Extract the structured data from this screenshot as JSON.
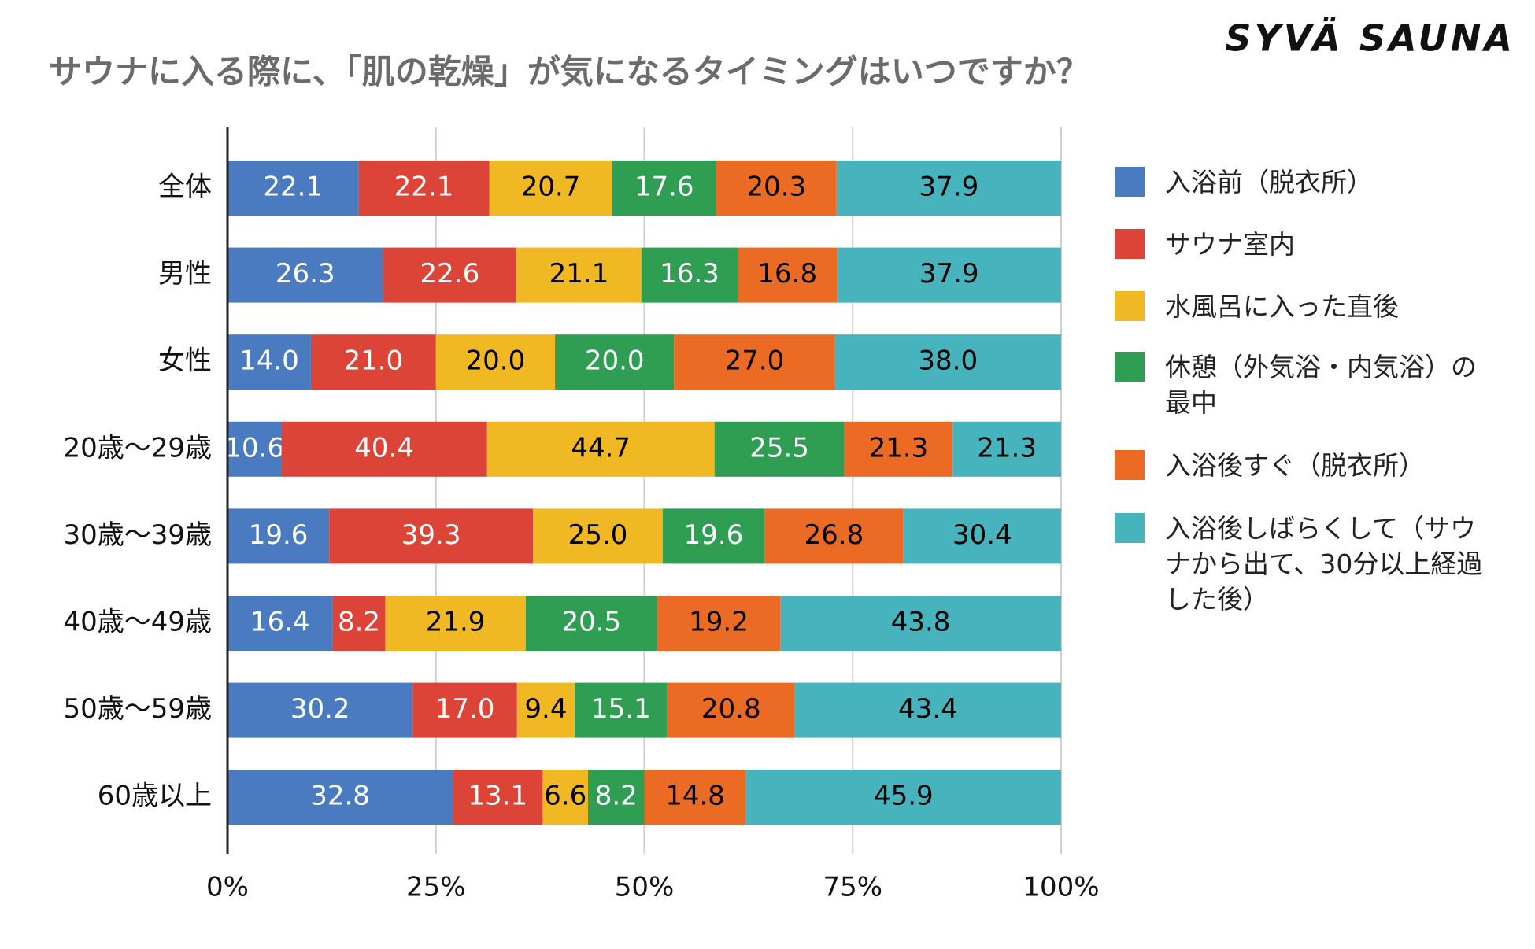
{
  "chart_data": {
    "type": "bar",
    "stacked": "percent",
    "orientation": "horizontal",
    "title": "サウナに入る際に、「肌の乾燥」が気になるタイミングはいつですか？",
    "logo": "SYVÄ SAUNA",
    "categories": [
      "全体",
      "男性",
      "女性",
      "20歳～29歳",
      "30歳～39歳",
      "40歳～49歳",
      "50歳～59歳",
      "60歳以上"
    ],
    "series": [
      {
        "name": "入浴前（脱衣所）",
        "color": "#4a7bc0",
        "label_color": "#ffffff",
        "values": [
          22.1,
          26.3,
          14.0,
          10.6,
          19.6,
          16.4,
          30.2,
          32.8
        ],
        "value_labels": [
          "22.1",
          "26.3",
          "14.0",
          "10.6",
          "19.6",
          "16.4",
          "30.2",
          "32.8"
        ]
      },
      {
        "name": "サウナ室内",
        "color": "#dc4437",
        "label_color": "#ffffff",
        "values": [
          22.1,
          22.6,
          21.0,
          40.4,
          39.3,
          8.2,
          17.0,
          13.1
        ],
        "value_labels": [
          "22.1",
          "22.6",
          "21.0",
          "40.4",
          "39.3",
          "8.2",
          "17.0",
          "13.1"
        ]
      },
      {
        "name": "水風呂に入った直後",
        "color": "#f0b823",
        "label_color": "#000000",
        "values": [
          20.7,
          21.1,
          20.0,
          44.7,
          25.0,
          21.9,
          9.4,
          6.6
        ],
        "value_labels": [
          "20.7",
          "21.1",
          "20.0",
          "44.7",
          "25.0",
          "21.9",
          "9.4",
          "6.6"
        ]
      },
      {
        "name": "休憩（外気浴・内気浴）の最中",
        "color": "#2f9e53",
        "label_color": "#ffffff",
        "values": [
          17.6,
          16.3,
          20.0,
          25.5,
          19.6,
          20.5,
          15.1,
          8.2
        ],
        "value_labels": [
          "17.6",
          "16.3",
          "20.0",
          "25.5",
          "19.6",
          "20.5",
          "15.1",
          "8.2"
        ]
      },
      {
        "name": "入浴後すぐ（脱衣所）",
        "color": "#ec6b24",
        "label_color": "#000000",
        "values": [
          20.3,
          16.8,
          27.0,
          21.3,
          26.8,
          19.2,
          20.8,
          14.8
        ],
        "value_labels": [
          "20.3",
          "16.8",
          "27.0",
          "21.3",
          "26.8",
          "19.2",
          "20.8",
          "14.8"
        ]
      },
      {
        "name": "入浴後しばらくして（サウナから出て、30分以上経過した後）",
        "color": "#46b3bd",
        "label_color": "#000000",
        "values": [
          37.9,
          37.9,
          38.0,
          21.3,
          30.4,
          43.8,
          43.4,
          45.9
        ],
        "value_labels": [
          "37.9",
          "37.9",
          "38.0",
          "21.3",
          "30.4",
          "43.8",
          "43.4",
          "45.9"
        ]
      }
    ],
    "xlim": [
      0,
      100
    ],
    "xticks": [
      {
        "value": 0,
        "label": "0%"
      },
      {
        "value": 25,
        "label": "25%"
      },
      {
        "value": 50,
        "label": "50%"
      },
      {
        "value": 75,
        "label": "75%"
      },
      {
        "value": 100,
        "label": "100%"
      }
    ],
    "grid": true,
    "legend": "right"
  }
}
